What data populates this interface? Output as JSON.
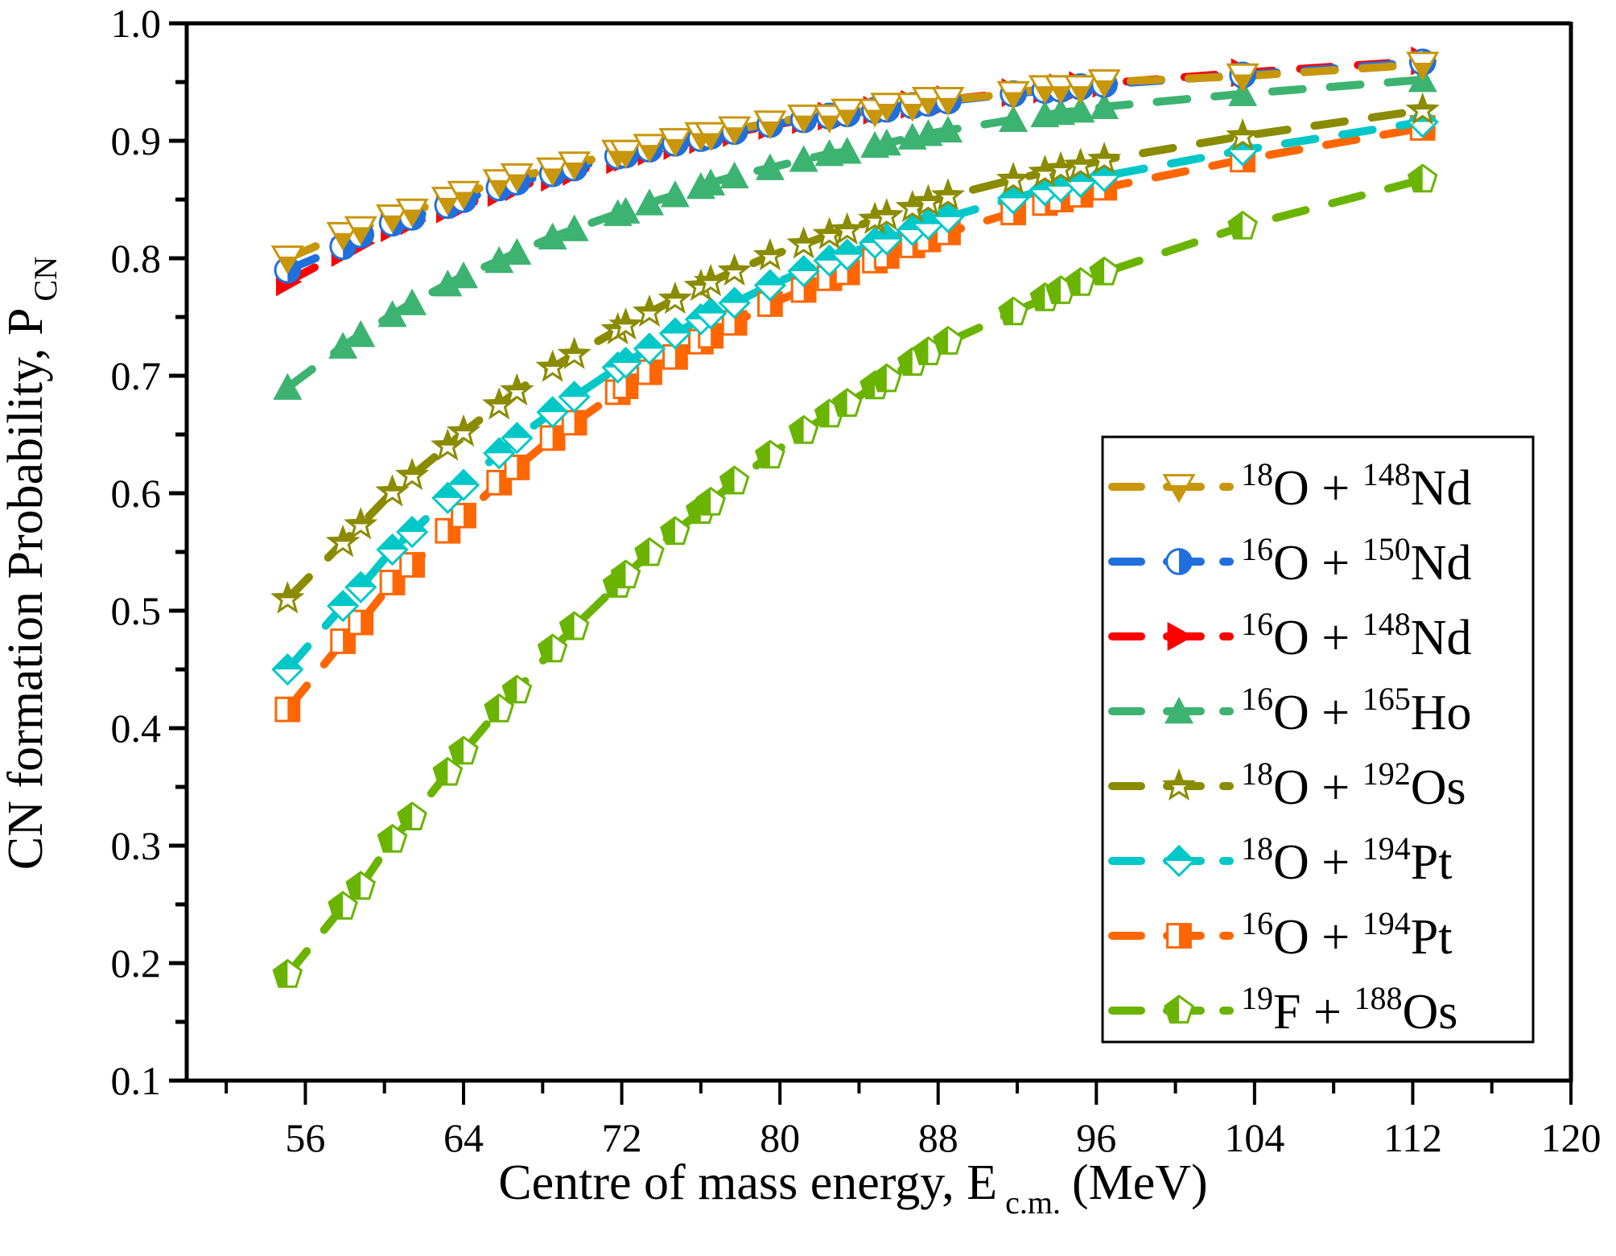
{
  "chart_data": {
    "type": "line",
    "title": "",
    "xlabel": "Centre of mass energy, E",
    "xlabel_sub": "c.m.",
    "xlabel_unit": "(MeV)",
    "ylabel": "CN formation Probability, P",
    "ylabel_sub": "CN",
    "xlim": [
      50,
      120
    ],
    "ylim": [
      0.1,
      1.0
    ],
    "x_ticks": [
      56,
      64,
      72,
      80,
      88,
      96,
      104,
      112,
      120
    ],
    "x_tick_labels": [
      "56",
      "64",
      "72",
      "80",
      "88",
      "96",
      "104",
      "112",
      "120"
    ],
    "y_ticks": [
      0.1,
      0.2,
      0.3,
      0.4,
      0.5,
      0.6,
      0.7,
      0.8,
      0.9,
      1.0
    ],
    "y_tick_labels": [
      "0.1",
      "0.2",
      "0.3",
      "0.4",
      "0.5",
      "0.6",
      "0.7",
      "0.8",
      "0.9",
      "1.0"
    ],
    "grid": false,
    "legend_position": "bottom-right",
    "x": [
      55.1,
      57.9,
      58.8,
      60.4,
      61.4,
      63.2,
      64.0,
      65.8,
      66.7,
      68.5,
      69.6,
      71.8,
      72.2,
      73.4,
      74.7,
      76.0,
      76.5,
      77.7,
      79.5,
      81.2,
      82.5,
      83.4,
      84.8,
      85.4,
      86.7,
      87.5,
      88.5,
      91.8,
      93.4,
      94.2,
      95.2,
      96.4,
      103.4,
      112.5
    ],
    "series": [
      {
        "name": "18O + 148Nd",
        "proj_mass": "18",
        "proj": "O",
        "targ_mass": "148",
        "targ": "Nd",
        "color": "#c8960a",
        "marker": "triangle-down-half",
        "values": [
          0.8,
          0.82,
          0.825,
          0.835,
          0.84,
          0.85,
          0.855,
          0.865,
          0.87,
          0.875,
          0.88,
          0.89,
          0.89,
          0.895,
          0.9,
          0.905,
          0.905,
          0.91,
          0.915,
          0.92,
          0.92,
          0.925,
          0.925,
          0.93,
          0.93,
          0.935,
          0.935,
          0.94,
          0.945,
          0.945,
          0.945,
          0.95,
          0.955,
          0.965
        ]
      },
      {
        "name": "16O + 150Nd",
        "proj_mass": "16",
        "proj": "O",
        "targ_mass": "150",
        "targ": "Nd",
        "color": "#1f6fdc",
        "marker": "circle-half",
        "values": [
          0.79,
          0.81,
          0.82,
          0.83,
          0.835,
          0.845,
          0.85,
          0.86,
          0.865,
          0.872,
          0.877,
          0.887,
          0.888,
          0.893,
          0.898,
          0.902,
          0.904,
          0.908,
          0.914,
          0.918,
          0.921,
          0.923,
          0.926,
          0.927,
          0.93,
          0.932,
          0.934,
          0.94,
          0.943,
          0.944,
          0.946,
          0.948,
          0.956,
          0.967
        ]
      },
      {
        "name": "16O + 148Nd",
        "proj_mass": "16",
        "proj": "O",
        "targ_mass": "148",
        "targ": "Nd",
        "color": "#ff0000",
        "marker": "triangle-right",
        "values": [
          0.78,
          0.805,
          0.813,
          0.826,
          0.832,
          0.842,
          0.846,
          0.856,
          0.861,
          0.869,
          0.874,
          0.884,
          0.886,
          0.891,
          0.896,
          0.901,
          0.903,
          0.907,
          0.913,
          0.918,
          0.921,
          0.923,
          0.926,
          0.928,
          0.931,
          0.933,
          0.935,
          0.941,
          0.944,
          0.945,
          0.947,
          0.949,
          0.958,
          0.968
        ]
      },
      {
        "name": "16O + 165Ho",
        "proj_mass": "16",
        "proj": "O",
        "targ_mass": "165",
        "targ": "Ho",
        "color": "#3cb371",
        "marker": "triangle-up",
        "values": [
          0.69,
          0.725,
          0.735,
          0.752,
          0.762,
          0.778,
          0.785,
          0.798,
          0.805,
          0.818,
          0.825,
          0.838,
          0.84,
          0.847,
          0.854,
          0.861,
          0.864,
          0.87,
          0.877,
          0.884,
          0.889,
          0.891,
          0.896,
          0.898,
          0.903,
          0.906,
          0.909,
          0.918,
          0.922,
          0.924,
          0.926,
          0.929,
          0.94,
          0.952
        ]
      },
      {
        "name": "18O + 192Os",
        "proj_mass": "18",
        "proj": "O",
        "targ_mass": "192",
        "targ": "Os",
        "color": "#8b8b00",
        "marker": "star-half",
        "values": [
          0.51,
          0.558,
          0.573,
          0.601,
          0.615,
          0.64,
          0.652,
          0.675,
          0.687,
          0.707,
          0.718,
          0.739,
          0.743,
          0.754,
          0.765,
          0.776,
          0.78,
          0.789,
          0.802,
          0.812,
          0.82,
          0.824,
          0.833,
          0.836,
          0.843,
          0.848,
          0.853,
          0.867,
          0.873,
          0.876,
          0.879,
          0.884,
          0.904,
          0.926
        ]
      },
      {
        "name": "18O + 194Pt",
        "proj_mass": "18",
        "proj": "O",
        "targ_mass": "194",
        "targ": "Pt",
        "color": "#00c8c8",
        "marker": "diamond-half",
        "values": [
          0.45,
          0.504,
          0.52,
          0.552,
          0.567,
          0.596,
          0.607,
          0.634,
          0.647,
          0.669,
          0.682,
          0.707,
          0.711,
          0.723,
          0.736,
          0.748,
          0.753,
          0.762,
          0.777,
          0.789,
          0.798,
          0.803,
          0.813,
          0.816,
          0.824,
          0.829,
          0.835,
          0.851,
          0.858,
          0.861,
          0.865,
          0.87,
          0.892,
          0.916
        ]
      },
      {
        "name": "16O + 194Pt",
        "proj_mass": "16",
        "proj": "O",
        "targ_mass": "194",
        "targ": "Pt",
        "color": "#ff6600",
        "marker": "square-half",
        "values": [
          0.416,
          0.474,
          0.49,
          0.524,
          0.539,
          0.568,
          0.581,
          0.609,
          0.622,
          0.647,
          0.66,
          0.686,
          0.691,
          0.703,
          0.716,
          0.729,
          0.734,
          0.745,
          0.761,
          0.773,
          0.783,
          0.788,
          0.798,
          0.802,
          0.811,
          0.816,
          0.822,
          0.839,
          0.847,
          0.85,
          0.854,
          0.86,
          0.884,
          0.911
        ]
      },
      {
        "name": "19F + 188Os",
        "proj_mass": "19",
        "proj": "F",
        "targ_mass": "188",
        "targ": "Os",
        "color": "#6ab400",
        "marker": "pentagon-half",
        "values": [
          0.19,
          0.248,
          0.265,
          0.305,
          0.324,
          0.362,
          0.38,
          0.416,
          0.432,
          0.467,
          0.486,
          0.522,
          0.53,
          0.549,
          0.567,
          0.585,
          0.592,
          0.61,
          0.632,
          0.653,
          0.667,
          0.676,
          0.691,
          0.697,
          0.711,
          0.72,
          0.729,
          0.754,
          0.766,
          0.772,
          0.779,
          0.788,
          0.827,
          0.867
        ]
      }
    ]
  }
}
